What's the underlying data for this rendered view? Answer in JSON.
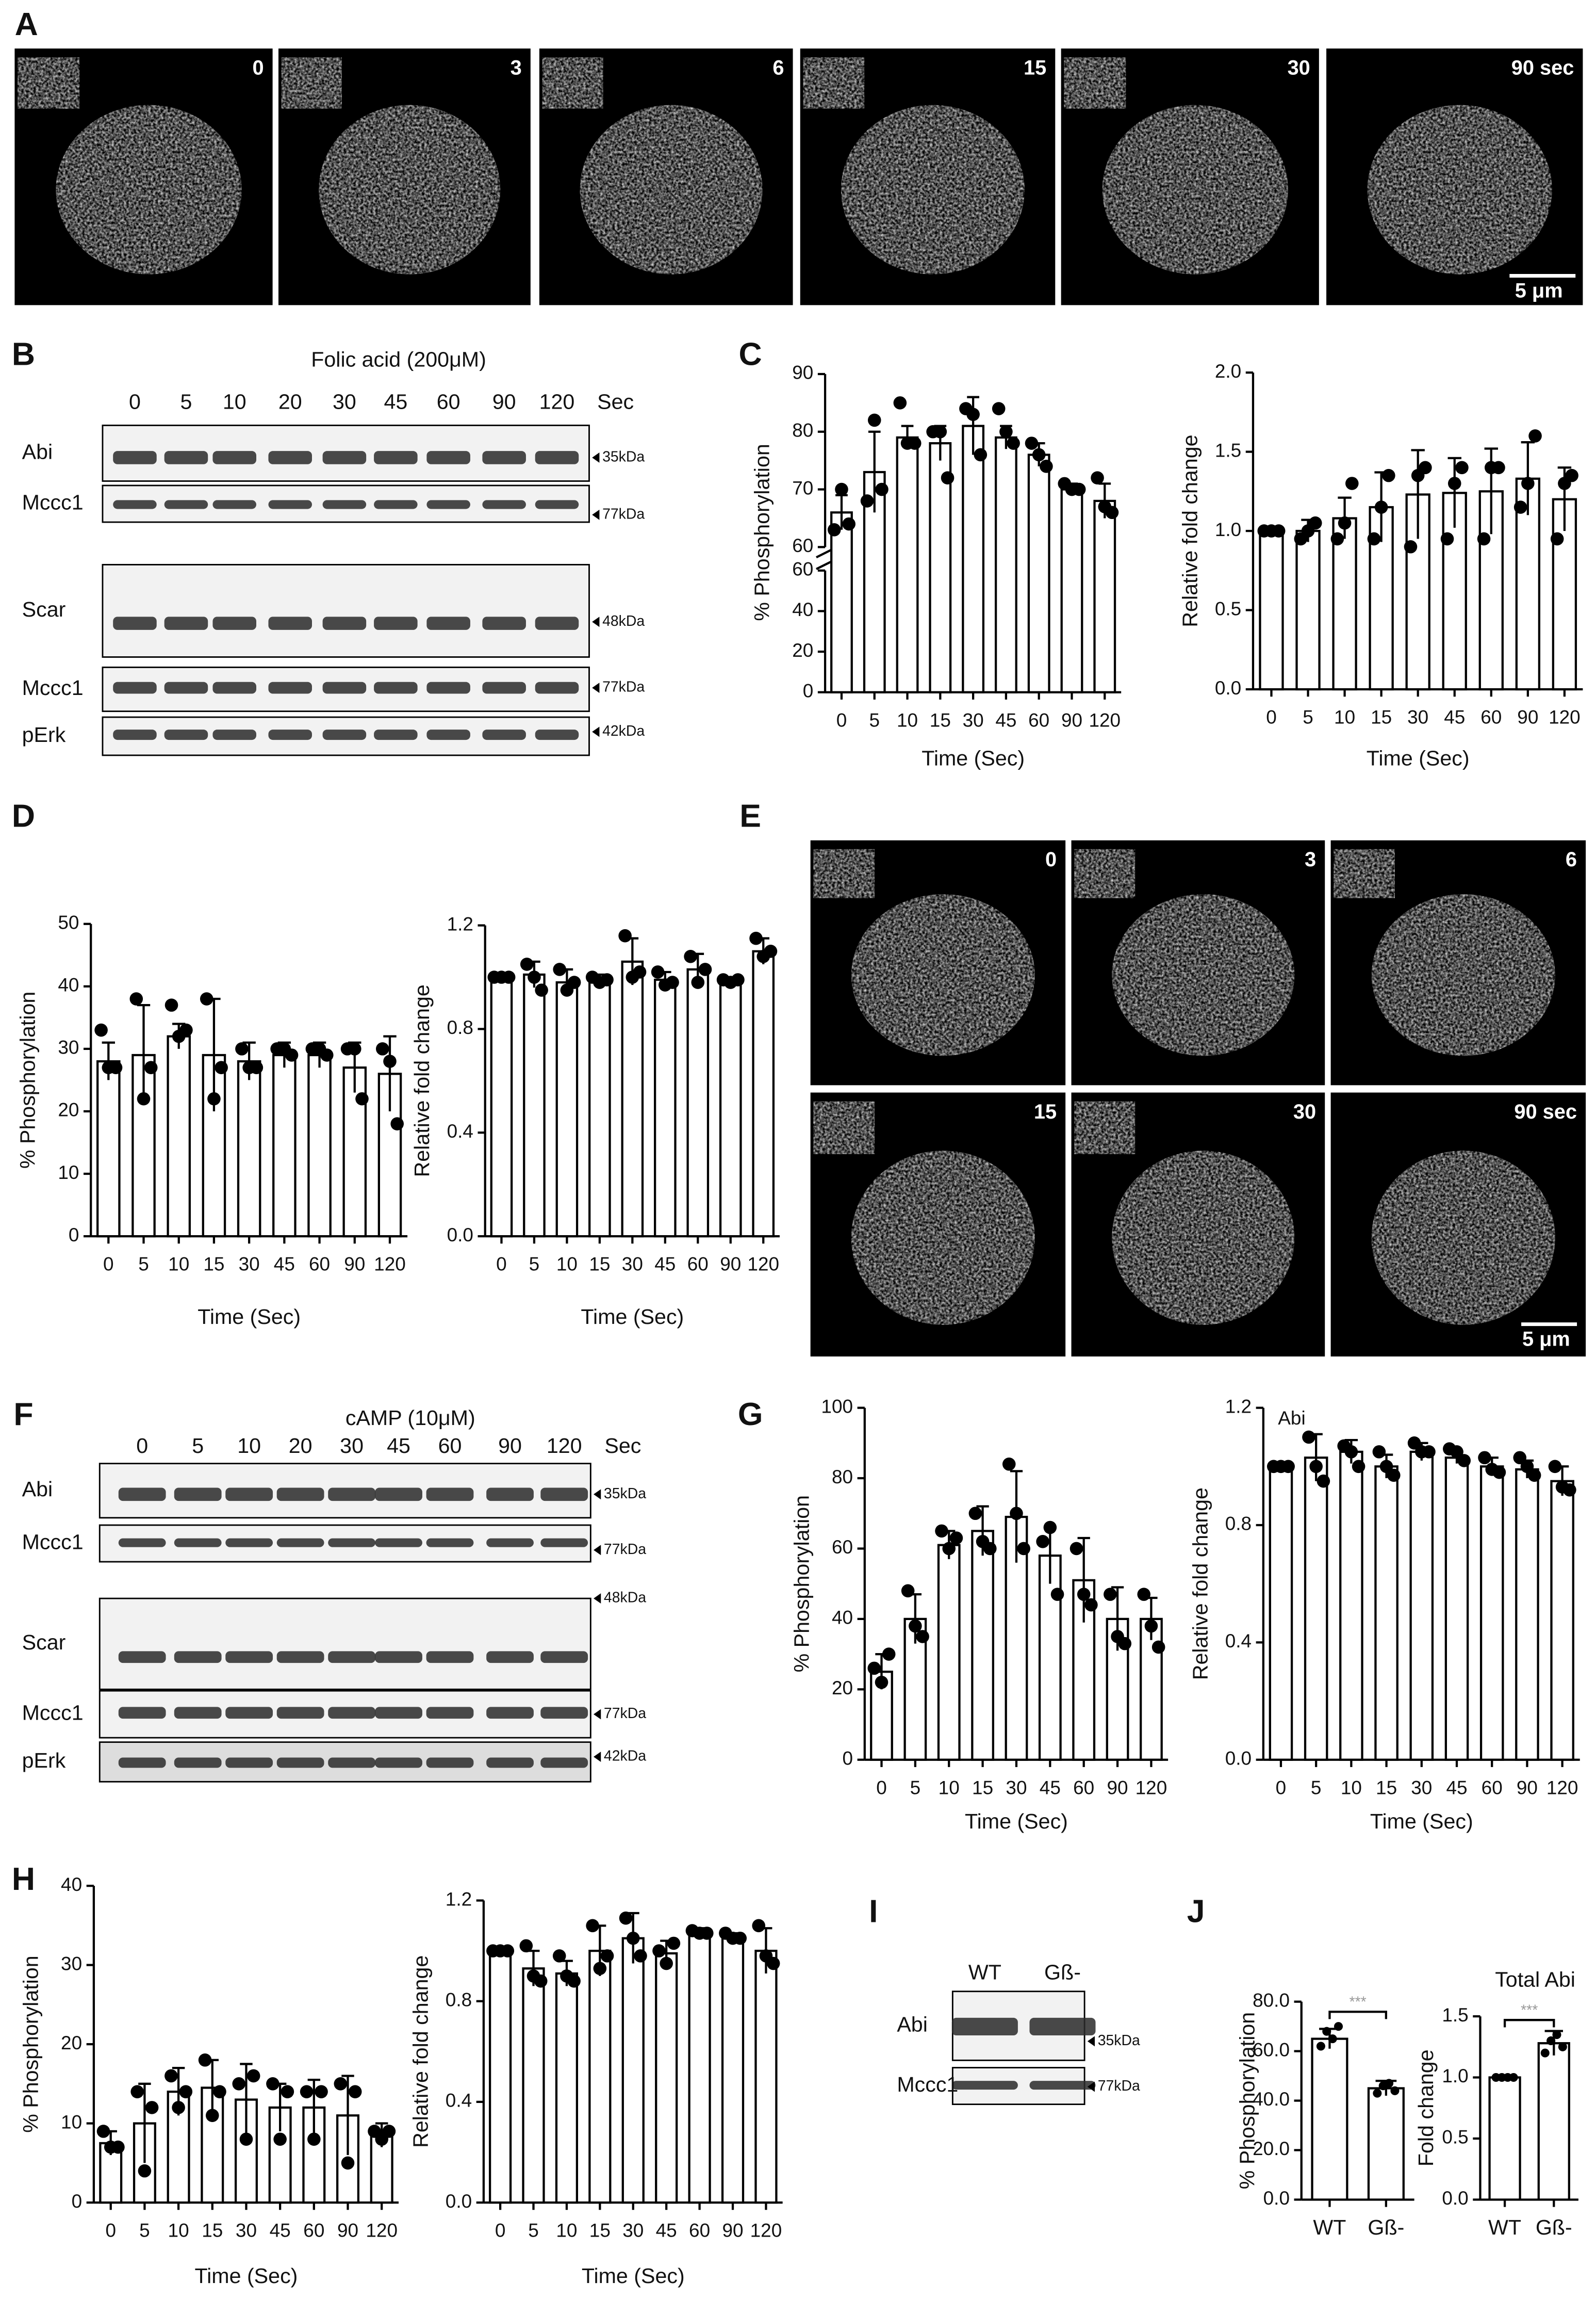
{
  "panel_labels": [
    "A",
    "B",
    "C",
    "D",
    "E",
    "F",
    "G",
    "H",
    "I",
    "J"
  ],
  "micrographs": [
    {
      "labels": [
        "0",
        "3",
        "6",
        "15",
        "30",
        "90 sec"
      ],
      "scale_bar": "5 μm"
    },
    {
      "labels": [
        "0",
        "3",
        "6",
        "15",
        "30",
        "90 sec"
      ],
      "scale_bar": "5 μm"
    }
  ],
  "blots": [
    {
      "treatment": "Folic acid (200μM)",
      "lanes": [
        "0",
        "5",
        "10",
        "20",
        "30",
        "45",
        "60",
        "90",
        "120"
      ],
      "lane_unit": "Sec",
      "rows": [
        {
          "label": "Abi",
          "size": "35kDa"
        },
        {
          "label": "Mccc1",
          "size": "77kDa"
        },
        {
          "label": "Scar",
          "size": "48kDa"
        },
        {
          "label": "Mccc1",
          "size": "77kDa"
        },
        {
          "label": "pErk",
          "size": "42kDa"
        }
      ]
    },
    {
      "treatment": "cAMP (10μM)",
      "lanes": [
        "0",
        "5",
        "10",
        "20",
        "30",
        "45",
        "60",
        "90",
        "120"
      ],
      "lane_unit": "Sec",
      "rows": [
        {
          "label": "Abi",
          "size": "35kDa"
        },
        {
          "label": "Mccc1",
          "size": "77kDa"
        },
        {
          "label": "Scar",
          "size": "48kDa"
        },
        {
          "label": "Mccc1",
          "size": "77kDa"
        },
        {
          "label": "pErk",
          "size": "42kDa"
        }
      ]
    },
    {
      "lanes": [
        "WT",
        "Gß-"
      ],
      "rows": [
        {
          "label": "Abi",
          "size": "35kDa"
        },
        {
          "label": "Mccc1",
          "size": "77kDa"
        }
      ]
    }
  ],
  "chart_data": [
    {
      "type": "bar",
      "ylabel": "% Phosphorylation",
      "xlabel": "Time (Sec)",
      "categories": [
        "0",
        "5",
        "10",
        "15",
        "30",
        "45",
        "60",
        "90",
        "120"
      ],
      "values": [
        66,
        73,
        79,
        78,
        81,
        79,
        76,
        70,
        68
      ],
      "errors": [
        3,
        7,
        2,
        3,
        5,
        2,
        2,
        1,
        3
      ],
      "points": [
        [
          63,
          70,
          64
        ],
        [
          68,
          82,
          70
        ],
        [
          85,
          78,
          78
        ],
        [
          80,
          80,
          72
        ],
        [
          84,
          83,
          76
        ],
        [
          84,
          80,
          78
        ],
        [
          78,
          76,
          74
        ],
        [
          71,
          70,
          70
        ],
        [
          72,
          67,
          66
        ]
      ],
      "ysegments": [
        {
          "ylim": [
            0,
            60
          ],
          "yticks": [
            0,
            20,
            40,
            60
          ]
        },
        {
          "ylim": [
            60,
            90
          ],
          "yticks": [
            60,
            70,
            80,
            90
          ]
        }
      ]
    },
    {
      "type": "bar",
      "ylabel": "Relative fold change",
      "xlabel": "Time (Sec)",
      "categories": [
        "0",
        "5",
        "10",
        "15",
        "30",
        "45",
        "60",
        "90",
        "120"
      ],
      "values": [
        1.0,
        1.0,
        1.08,
        1.15,
        1.23,
        1.24,
        1.25,
        1.33,
        1.2
      ],
      "errors": [
        0.01,
        0.07,
        0.13,
        0.22,
        0.28,
        0.22,
        0.27,
        0.23,
        0.2
      ],
      "points": [
        [
          1,
          1,
          1
        ],
        [
          0.95,
          1.0,
          1.05
        ],
        [
          0.95,
          1.05,
          1.3
        ],
        [
          0.95,
          1.15,
          1.35
        ],
        [
          0.9,
          1.35,
          1.4
        ],
        [
          0.95,
          1.3,
          1.4
        ],
        [
          0.95,
          1.4,
          1.4
        ],
        [
          1.15,
          1.3,
          1.6
        ],
        [
          0.95,
          1.3,
          1.35
        ]
      ],
      "ylim": [
        0,
        2
      ],
      "yticks": [
        {
          "value": 0,
          "label": "0.0"
        },
        {
          "value": 0.5,
          "label": "0.5"
        },
        {
          "value": 1,
          "label": "1.0"
        },
        {
          "value": 1.5,
          "label": "1.5"
        },
        {
          "value": 2,
          "label": "2.0"
        }
      ]
    },
    {
      "type": "bar",
      "ylabel": "% Phosphorylation",
      "xlabel": "Time (Sec)",
      "categories": [
        "0",
        "5",
        "10",
        "15",
        "30",
        "45",
        "60",
        "90",
        "120"
      ],
      "values": [
        28,
        29,
        32,
        29,
        28,
        29,
        29,
        27,
        26
      ],
      "errors": [
        3,
        8,
        2,
        9,
        3,
        2,
        2,
        4,
        6
      ],
      "points": [
        [
          33,
          27,
          27
        ],
        [
          38,
          22,
          27
        ],
        [
          37,
          32,
          33
        ],
        [
          38,
          22,
          27
        ],
        [
          30,
          27,
          27
        ],
        [
          30,
          30,
          29
        ],
        [
          30,
          30,
          29
        ],
        [
          30,
          30,
          22
        ],
        [
          30,
          28,
          18
        ]
      ],
      "ylim": [
        0,
        50
      ],
      "yticks": [
        0,
        10,
        20,
        30,
        40,
        50
      ]
    },
    {
      "type": "bar",
      "ylabel": "Relative fold change",
      "xlabel": "Time (Sec)",
      "categories": [
        "0",
        "5",
        "10",
        "15",
        "30",
        "45",
        "60",
        "90",
        "120"
      ],
      "values": [
        1.0,
        1.01,
        0.98,
        0.99,
        1.06,
        0.99,
        1.03,
        0.99,
        1.1
      ],
      "errors": [
        0.01,
        0.05,
        0.05,
        0.02,
        0.09,
        0.03,
        0.06,
        0.01,
        0.05
      ],
      "points": [
        [
          1,
          1,
          1
        ],
        [
          1.05,
          1.0,
          0.95
        ],
        [
          1.03,
          0.95,
          0.98
        ],
        [
          1.0,
          0.98,
          0.99
        ],
        [
          1.16,
          1.0,
          1.02
        ],
        [
          1.02,
          0.97,
          0.98
        ],
        [
          1.08,
          0.98,
          1.03
        ],
        [
          0.99,
          0.98,
          0.99
        ],
        [
          1.15,
          1.08,
          1.1
        ]
      ],
      "ylim": [
        0,
        1.2
      ],
      "yticks": [
        {
          "value": 0,
          "label": "0.0"
        },
        0.4,
        0.8,
        1.2
      ]
    },
    {
      "type": "bar",
      "ylabel": "% Phosphorylation",
      "xlabel": "Time (Sec)",
      "categories": [
        "0",
        "5",
        "10",
        "15",
        "30",
        "45",
        "60",
        "90",
        "120"
      ],
      "values": [
        25,
        40,
        61,
        65,
        69,
        58,
        51,
        40,
        40
      ],
      "errors": [
        5,
        7,
        4,
        7,
        13,
        8,
        12,
        9,
        6
      ],
      "points": [
        [
          26,
          22,
          30
        ],
        [
          48,
          38,
          35
        ],
        [
          65,
          60,
          63
        ],
        [
          70,
          62,
          60
        ],
        [
          84,
          70,
          60
        ],
        [
          62,
          66,
          47
        ],
        [
          60,
          47,
          44
        ],
        [
          47,
          35,
          33
        ],
        [
          47,
          38,
          32
        ]
      ],
      "ylim": [
        0,
        100
      ],
      "yticks": [
        0,
        20,
        40,
        60,
        80,
        100
      ]
    },
    {
      "type": "bar",
      "ylabel": "Relative fold change",
      "xlabel": "Time (Sec)",
      "annotation": "Abi",
      "categories": [
        "0",
        "5",
        "10",
        "15",
        "30",
        "45",
        "60",
        "90",
        "120"
      ],
      "values": [
        1.0,
        1.03,
        1.05,
        1.0,
        1.05,
        1.03,
        1.0,
        0.99,
        0.95
      ],
      "errors": [
        0.01,
        0.08,
        0.04,
        0.04,
        0.03,
        0.02,
        0.03,
        0.03,
        0.05
      ],
      "points": [
        [
          1,
          1,
          1
        ],
        [
          1.1,
          1.0,
          0.95
        ],
        [
          1.07,
          1.05,
          1.0
        ],
        [
          1.05,
          1.0,
          0.97
        ],
        [
          1.08,
          1.05,
          1.05
        ],
        [
          1.06,
          1.05,
          1.02
        ],
        [
          1.03,
          0.99,
          0.98
        ],
        [
          1.03,
          1.0,
          0.97
        ],
        [
          1.0,
          0.93,
          0.92
        ]
      ],
      "ylim": [
        0,
        1.2
      ],
      "yticks": [
        {
          "value": 0,
          "label": "0.0"
        },
        0.4,
        0.8,
        1.2
      ]
    },
    {
      "type": "bar",
      "ylabel": "% Phosphorylation",
      "xlabel": "Time (Sec)",
      "categories": [
        "0",
        "5",
        "10",
        "15",
        "30",
        "45",
        "60",
        "90",
        "120"
      ],
      "values": [
        7.5,
        10,
        14,
        14.5,
        13,
        12,
        12,
        11,
        8.5
      ],
      "errors": [
        1.5,
        5,
        3,
        3.5,
        4.5,
        3,
        3.5,
        5,
        1.5
      ],
      "points": [
        [
          9,
          7,
          7
        ],
        [
          14,
          4,
          12
        ],
        [
          16,
          12,
          14
        ],
        [
          18,
          11,
          14
        ],
        [
          15,
          8,
          16
        ],
        [
          15,
          8,
          14
        ],
        [
          14,
          8,
          14
        ],
        [
          15,
          5,
          14
        ],
        [
          9,
          8,
          9
        ]
      ],
      "ylim": [
        0,
        40
      ],
      "yticks": [
        0,
        10,
        20,
        30,
        40
      ]
    },
    {
      "type": "bar",
      "ylabel": "Relative fold change",
      "xlabel": "Time (Sec)",
      "categories": [
        "0",
        "5",
        "10",
        "15",
        "30",
        "45",
        "60",
        "90",
        "120"
      ],
      "values": [
        1.0,
        0.93,
        0.91,
        1.0,
        1.05,
        0.99,
        1.07,
        1.05,
        1.0
      ],
      "errors": [
        0.01,
        0.07,
        0.05,
        0.1,
        0.1,
        0.05,
        0.02,
        0.02,
        0.09
      ],
      "points": [
        [
          1,
          1,
          1
        ],
        [
          1.02,
          0.9,
          0.88
        ],
        [
          0.98,
          0.9,
          0.88
        ],
        [
          1.1,
          0.93,
          0.98
        ],
        [
          1.13,
          1.05,
          0.98
        ],
        [
          1.0,
          0.95,
          1.03
        ],
        [
          1.08,
          1.07,
          1.07
        ],
        [
          1.07,
          1.05,
          1.05
        ],
        [
          1.1,
          0.98,
          0.95
        ]
      ],
      "ylim": [
        0,
        1.2
      ],
      "yticks": [
        {
          "value": 0,
          "label": "0.0"
        },
        0.4,
        0.8,
        1.2
      ]
    },
    {
      "type": "bar",
      "ylabel": "% Phosphorylation",
      "significance": "***",
      "categories": [
        "WT",
        "Gß-"
      ],
      "values": [
        65,
        45
      ],
      "errors": [
        4,
        3
      ],
      "points": [
        [
          62,
          68,
          65,
          70
        ],
        [
          43,
          46,
          47,
          44
        ]
      ],
      "ylim": [
        0,
        80
      ],
      "yticks": [
        {
          "value": 0,
          "label": "0.0"
        },
        {
          "value": 20,
          "label": "20.0"
        },
        {
          "value": 40,
          "label": "40.0"
        },
        {
          "value": 60,
          "label": "60.0"
        },
        {
          "value": 80,
          "label": "80.0"
        }
      ]
    },
    {
      "type": "bar",
      "title": "Total Abi",
      "ylabel": "Fold change",
      "significance": "***",
      "categories": [
        "WT",
        "Gß-"
      ],
      "values": [
        1.0,
        1.28
      ],
      "errors": [
        0.01,
        0.1
      ],
      "points": [
        [
          1,
          1,
          1,
          1
        ],
        [
          1.2,
          1.3,
          1.35,
          1.25
        ]
      ],
      "ylim": [
        0,
        1.5
      ],
      "yticks": [
        {
          "value": 0,
          "label": "0.0"
        },
        {
          "value": 0.5,
          "label": "0.5"
        },
        {
          "value": 1,
          "label": "1.0"
        },
        {
          "value": 1.5,
          "label": "1.5"
        }
      ]
    }
  ]
}
